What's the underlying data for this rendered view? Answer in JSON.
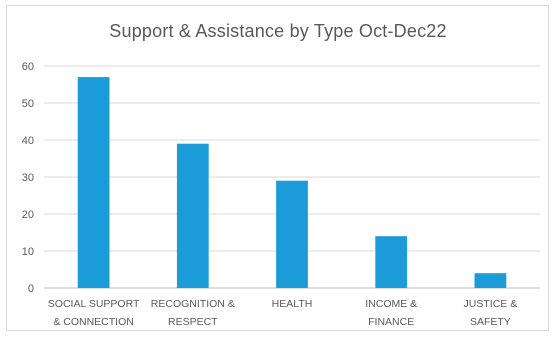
{
  "chart_data": {
    "type": "bar",
    "title": "Support & Assistance by Type Oct-Dec22",
    "xlabel": "",
    "ylabel": "",
    "categories": [
      [
        "SOCIAL SUPPORT",
        "& CONNECTION"
      ],
      [
        "RECOGNITION &",
        "RESPECT"
      ],
      [
        "HEALTH"
      ],
      [
        "INCOME &",
        "FINANCE"
      ],
      [
        "JUSTICE &",
        "SAFETY"
      ]
    ],
    "values": [
      57,
      39,
      29,
      14,
      4
    ],
    "ylim": [
      0,
      60
    ],
    "yticks": [
      0,
      10,
      20,
      30,
      40,
      50,
      60
    ],
    "grid": true,
    "legend": "none",
    "colors": {
      "bar": "#1b9bd7",
      "grid": "#d9d9d9",
      "axis": "#bfbfbf",
      "text": "#595959"
    }
  }
}
